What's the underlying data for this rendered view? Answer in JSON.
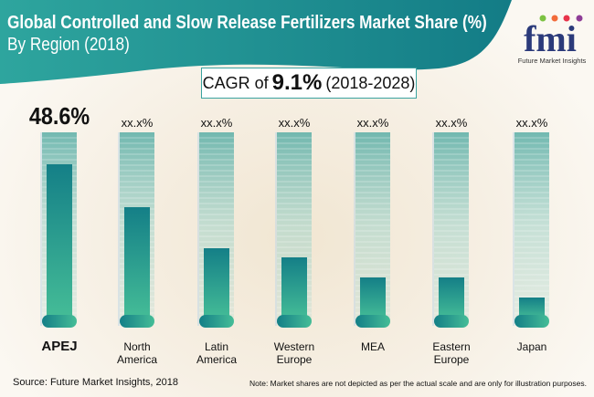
{
  "header": {
    "title": "Global Controlled and Slow Release Fertilizers Market Share (%)",
    "subtitle": "By Region (2018)"
  },
  "logo": {
    "text": "fmi",
    "tagline": "Future Market Insights"
  },
  "cagr": {
    "prefix": "CAGR of",
    "value": "9.1%",
    "period": "(2018-2028)"
  },
  "chart_data": {
    "type": "bar",
    "categories": [
      "APEJ",
      "North America",
      "Latin America",
      "Western Europe",
      "MEA",
      "Eastern Europe",
      "Japan"
    ],
    "value_labels": [
      "48.6%",
      "xx.x%",
      "xx.x%",
      "xx.x%",
      "xx.x%",
      "xx.x%",
      "xx.x%"
    ],
    "fill_fraction": [
      0.825,
      0.59,
      0.365,
      0.315,
      0.205,
      0.205,
      0.095
    ],
    "colors": {
      "fill_top": "#147f87",
      "fill_bottom": "#45bd97",
      "tube": "#9fd2c8"
    }
  },
  "footer": {
    "source": "Source: Future Market Insights, 2018",
    "note": "Note: Market shares are not depicted as per the actual scale and are only for illustration purposes."
  }
}
